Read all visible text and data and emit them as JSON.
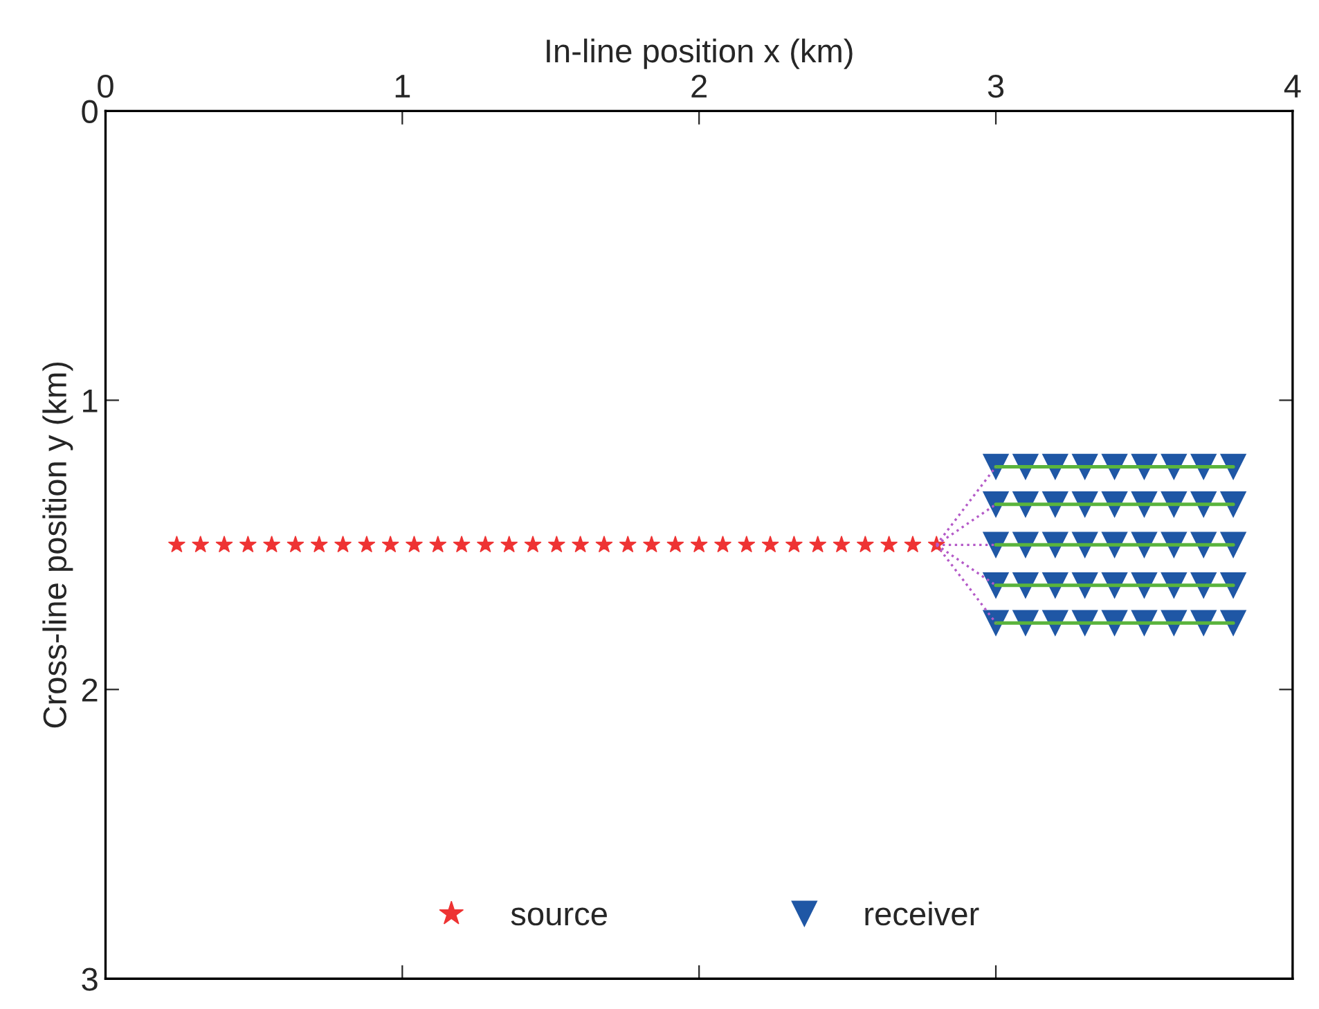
{
  "chart_data": {
    "type": "scatter",
    "xlabel": "In-line position x (km)",
    "ylabel": "Cross-line position y (km)",
    "xlim": [
      0,
      4
    ],
    "ylim": [
      3,
      0
    ],
    "xticks": [
      0,
      1,
      2,
      3,
      4
    ],
    "yticks": [
      0,
      1,
      2,
      3
    ],
    "grid": false,
    "legend": "bottom",
    "series": [
      {
        "type": "line",
        "color": "#5ab43c",
        "line_style": "solid",
        "marker": "none",
        "x": [
          3.0,
          3.8
        ],
        "values": [
          1.23,
          1.23
        ]
      },
      {
        "type": "line",
        "color": "#5ab43c",
        "line_style": "solid",
        "marker": "none",
        "x": [
          3.0,
          3.8
        ],
        "values": [
          1.36,
          1.36
        ]
      },
      {
        "type": "line",
        "color": "#5ab43c",
        "line_style": "solid",
        "marker": "none",
        "x": [
          3.0,
          3.8
        ],
        "values": [
          1.5,
          1.5
        ]
      },
      {
        "type": "line",
        "color": "#5ab43c",
        "line_style": "solid",
        "marker": "none",
        "x": [
          3.0,
          3.8
        ],
        "values": [
          1.64,
          1.64
        ]
      },
      {
        "type": "line",
        "color": "#5ab43c",
        "line_style": "solid",
        "marker": "none",
        "x": [
          3.0,
          3.8
        ],
        "values": [
          1.77,
          1.77
        ]
      },
      {
        "type": "line",
        "color": "#b45ac8",
        "line_style": "dotted",
        "marker": "none",
        "x": [
          2.8,
          3.0
        ],
        "values": [
          1.5,
          1.23
        ]
      },
      {
        "type": "line",
        "color": "#b45ac8",
        "line_style": "dotted",
        "marker": "none",
        "x": [
          2.8,
          3.0
        ],
        "values": [
          1.5,
          1.36
        ]
      },
      {
        "type": "line",
        "color": "#b45ac8",
        "line_style": "dotted",
        "marker": "none",
        "x": [
          2.8,
          3.0
        ],
        "values": [
          1.5,
          1.5
        ]
      },
      {
        "type": "line",
        "color": "#b45ac8",
        "line_style": "dotted",
        "marker": "none",
        "x": [
          2.8,
          3.0
        ],
        "values": [
          1.5,
          1.64
        ]
      },
      {
        "type": "line",
        "color": "#b45ac8",
        "line_style": "dotted",
        "marker": "none",
        "x": [
          2.8,
          3.0
        ],
        "values": [
          1.5,
          1.77
        ]
      },
      {
        "name": "source",
        "color": "#ee3333",
        "marker": "star",
        "x": [
          0.24,
          0.32,
          0.4,
          0.48,
          0.56,
          0.64,
          0.72,
          0.8,
          0.88,
          0.96,
          1.04,
          1.12,
          1.2,
          1.28,
          1.36,
          1.44,
          1.52,
          1.6,
          1.68,
          1.76,
          1.84,
          1.92,
          2.0,
          2.08,
          2.16,
          2.24,
          2.32,
          2.4,
          2.48,
          2.56,
          2.64,
          2.72,
          2.8
        ],
        "values": [
          1.5,
          1.5,
          1.5,
          1.5,
          1.5,
          1.5,
          1.5,
          1.5,
          1.5,
          1.5,
          1.5,
          1.5,
          1.5,
          1.5,
          1.5,
          1.5,
          1.5,
          1.5,
          1.5,
          1.5,
          1.5,
          1.5,
          1.5,
          1.5,
          1.5,
          1.5,
          1.5,
          1.5,
          1.5,
          1.5,
          1.5,
          1.5,
          1.5
        ]
      },
      {
        "name": "receiver",
        "color": "#1f57a5",
        "marker": "triangle",
        "x": [
          3.0,
          3.1,
          3.2,
          3.3,
          3.4,
          3.5,
          3.6,
          3.7,
          3.8,
          3.0,
          3.1,
          3.2,
          3.3,
          3.4,
          3.5,
          3.6,
          3.7,
          3.8,
          3.0,
          3.1,
          3.2,
          3.3,
          3.4,
          3.5,
          3.6,
          3.7,
          3.8,
          3.0,
          3.1,
          3.2,
          3.3,
          3.4,
          3.5,
          3.6,
          3.7,
          3.8,
          3.0,
          3.1,
          3.2,
          3.3,
          3.4,
          3.5,
          3.6,
          3.7,
          3.8
        ],
        "values": [
          1.23,
          1.23,
          1.23,
          1.23,
          1.23,
          1.23,
          1.23,
          1.23,
          1.23,
          1.36,
          1.36,
          1.36,
          1.36,
          1.36,
          1.36,
          1.36,
          1.36,
          1.36,
          1.5,
          1.5,
          1.5,
          1.5,
          1.5,
          1.5,
          1.5,
          1.5,
          1.5,
          1.64,
          1.64,
          1.64,
          1.64,
          1.64,
          1.64,
          1.64,
          1.64,
          1.64,
          1.77,
          1.77,
          1.77,
          1.77,
          1.77,
          1.77,
          1.77,
          1.77,
          1.77
        ]
      }
    ]
  }
}
